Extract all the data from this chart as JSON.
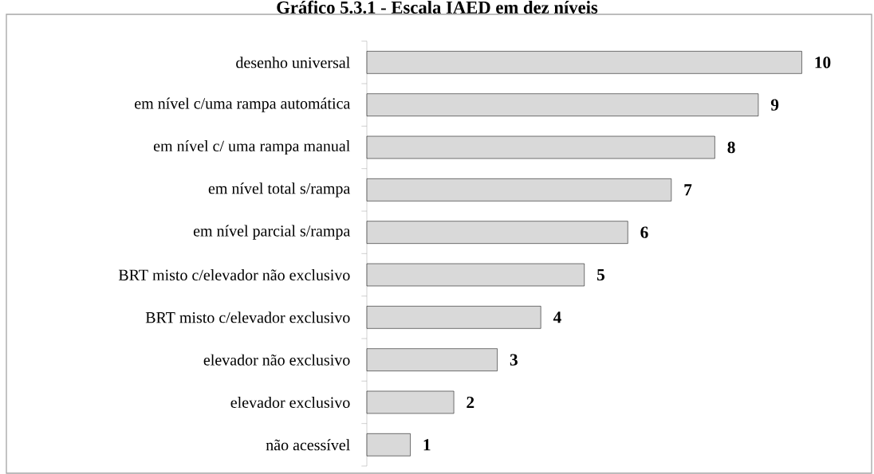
{
  "chart_data": {
    "type": "bar",
    "orientation": "horizontal",
    "title": "Gráfico 5.3.1 - Escala IAED em dez níveis",
    "categories": [
      "desenho universal",
      "em nível c/uma rampa automática",
      "em nível c/ uma rampa manual",
      "em nível total s/rampa",
      "em nível parcial s/rampa",
      "BRT misto c/elevador não exclusivo",
      "BRT misto c/elevador exclusivo",
      "elevador não exclusivo",
      "elevador exclusivo",
      "não acessível"
    ],
    "values": [
      10,
      9,
      8,
      7,
      6,
      5,
      4,
      3,
      2,
      1
    ],
    "color": "#d9d9d9",
    "data_labels": true
  }
}
